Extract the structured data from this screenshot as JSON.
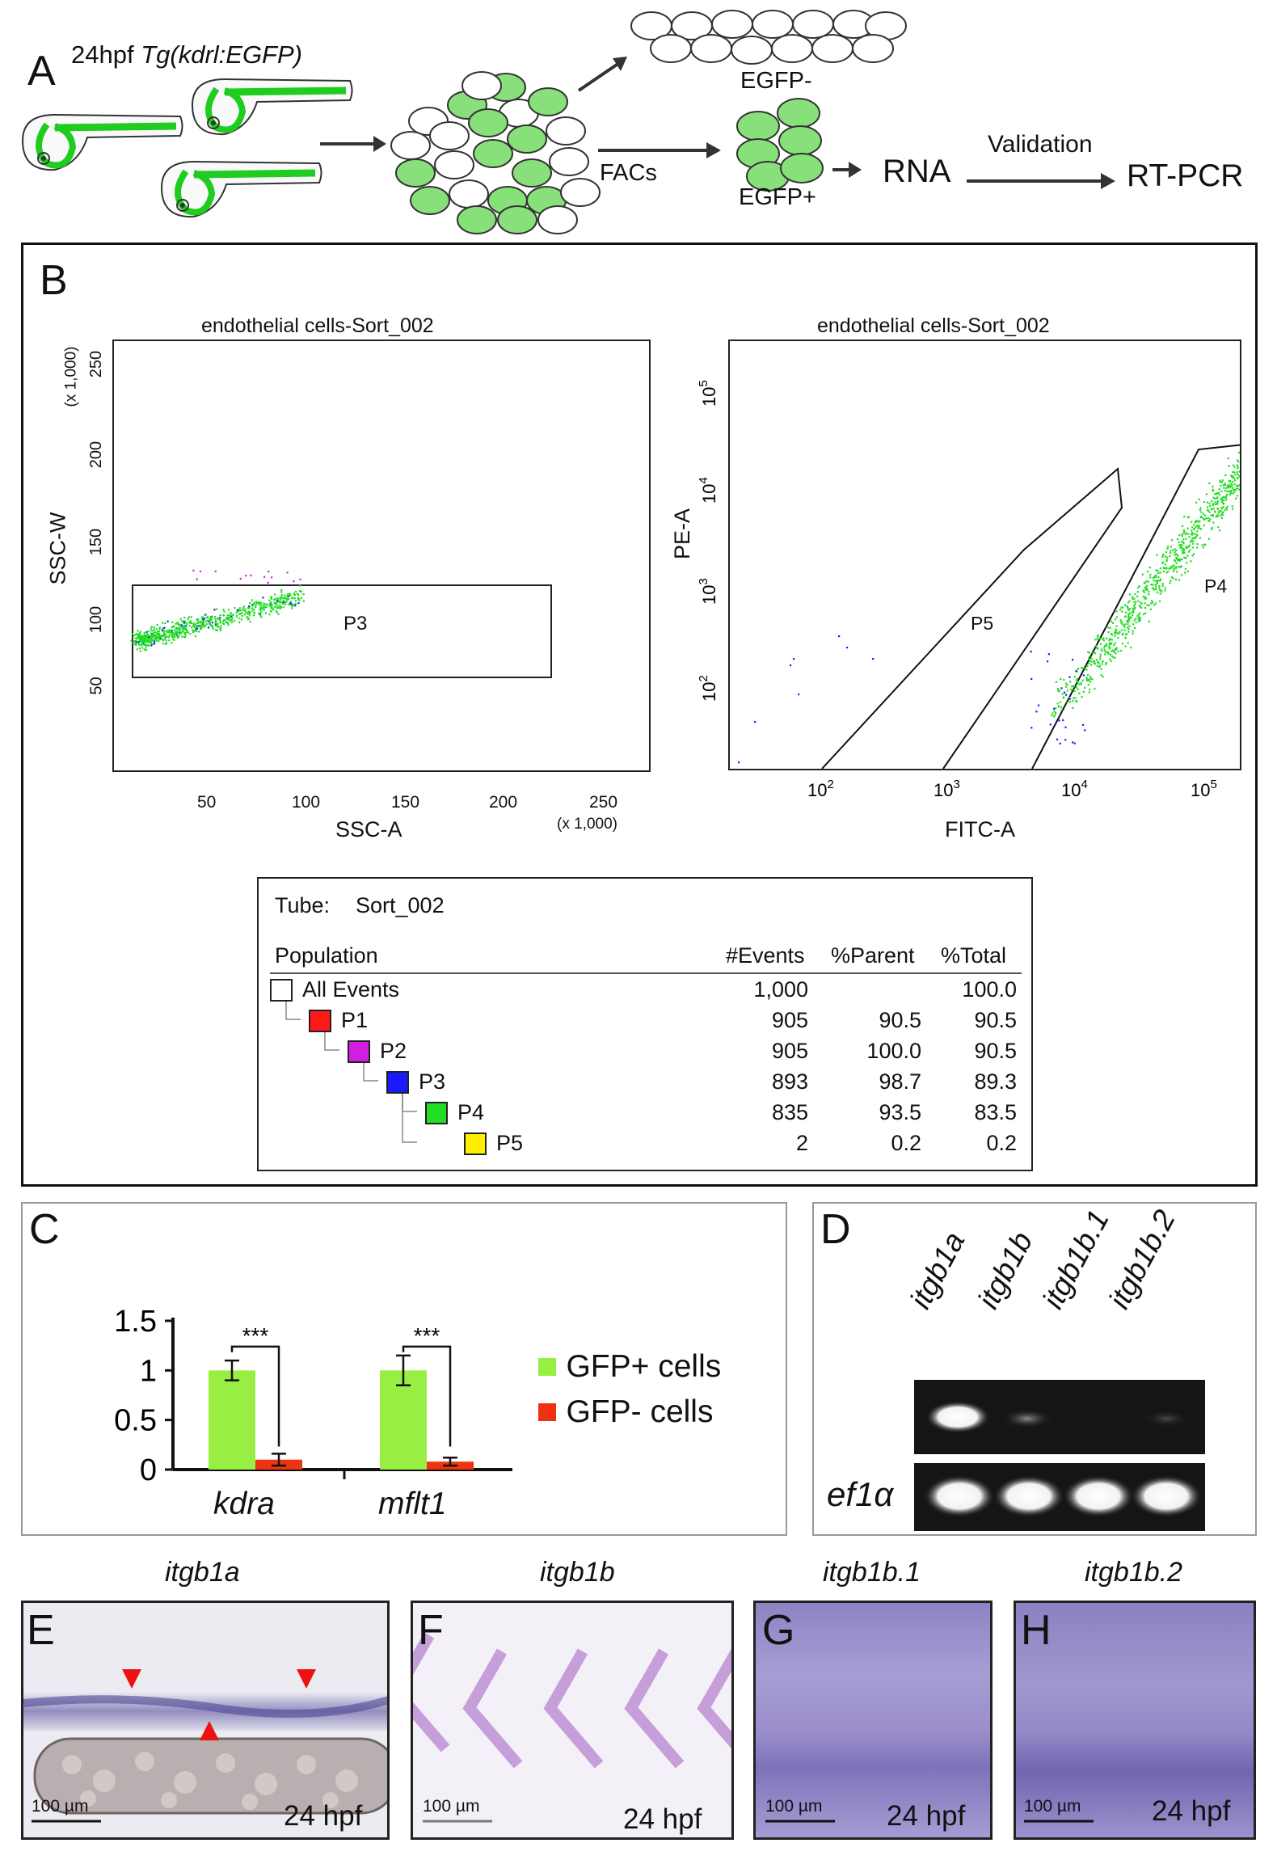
{
  "panel_a": {
    "label": "A",
    "title_prefix": "24hpf ",
    "title_italic": "Tg(kdrl:EGFP)",
    "egfp_minus": "EGFP-",
    "egfp_plus": "EGFP+",
    "facs": "FACs",
    "rna": "RNA",
    "validation": "Validation",
    "rtpcr": "RT-PCR"
  },
  "panel_b": {
    "label": "B",
    "left_plot": {
      "title": "endothelial cells-Sort_002",
      "xlabel": "SSC-A",
      "ylabel": "SSC-W",
      "x_mult": "(x 1,000)",
      "y_mult": "(x 1,000)",
      "xticks": [
        "50",
        "100",
        "150",
        "200",
        "250"
      ],
      "yticks": [
        "50",
        "100",
        "150",
        "200",
        "250"
      ],
      "gate": "P3"
    },
    "right_plot": {
      "title": "endothelial cells-Sort_002",
      "xlabel": "FITC-A",
      "ylabel": "PE-A",
      "gate_p5": "P5",
      "gate_p4": "P4"
    },
    "table": {
      "tube_label": "Tube:",
      "tube_value": "Sort_002",
      "headers": [
        "Population",
        "#Events",
        "%Parent",
        "%Total"
      ],
      "rows": [
        {
          "name": "All Events",
          "events": "1,000",
          "parent": "",
          "total": "100.0",
          "color": "#ffffff"
        },
        {
          "name": "P1",
          "events": "905",
          "parent": "90.5",
          "total": "90.5",
          "color": "#ff1a1a"
        },
        {
          "name": "P2",
          "events": "905",
          "parent": "100.0",
          "total": "90.5",
          "color": "#d21ee0"
        },
        {
          "name": "P3",
          "events": "893",
          "parent": "98.7",
          "total": "89.3",
          "color": "#1a1aff"
        },
        {
          "name": "P4",
          "events": "835",
          "parent": "93.5",
          "total": "83.5",
          "color": "#22dd22"
        },
        {
          "name": "P5",
          "events": "2",
          "parent": "0.2",
          "total": "0.2",
          "color": "#ffee00"
        }
      ]
    }
  },
  "panel_c": {
    "label": "C",
    "significance": "***"
  },
  "panel_d": {
    "label": "D",
    "lanes": [
      "itgb1a",
      "itgb1b",
      "itgb1b.1",
      "itgb1b.2"
    ],
    "control": "ef1α"
  },
  "panel_e": {
    "label": "E",
    "gene": "itgb1a",
    "scale": "100 µm",
    "stage": "24 hpf"
  },
  "panel_f": {
    "label": "F",
    "gene": "itgb1b",
    "scale": "100 µm",
    "stage": "24 hpf"
  },
  "panel_g": {
    "label": "G",
    "gene": "itgb1b.1",
    "scale": "100 µm",
    "stage": "24 hpf"
  },
  "panel_h": {
    "label": "H",
    "gene": "itgb1b.2",
    "scale": "100 µm",
    "stage": "24 hpf"
  },
  "chart_data": {
    "type": "bar",
    "categories": [
      "kdra",
      "mflt1"
    ],
    "series": [
      {
        "name": "GFP+ cells",
        "values": [
          1.0,
          1.0
        ],
        "errors": [
          0.1,
          0.15
        ],
        "color": "#99ee44"
      },
      {
        "name": "GFP- cells",
        "values": [
          0.1,
          0.08
        ],
        "errors": [
          0.06,
          0.04
        ],
        "color": "#ee3311"
      }
    ],
    "yticks": [
      "0",
      "0.5",
      "1",
      "1.5"
    ],
    "ylim": [
      0,
      1.5
    ],
    "legend": "right"
  }
}
